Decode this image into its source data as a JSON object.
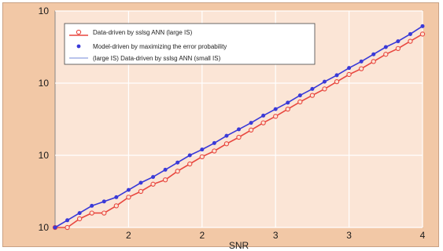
{
  "chart_data": {
    "type": "line",
    "title": "",
    "xlabel": "SNR",
    "ylabel": "",
    "x_tick_labels": [
      "2",
      "2",
      "3",
      "3",
      "4"
    ],
    "y_tick_labels": [
      "10",
      "10",
      "10",
      "10"
    ],
    "y_scale": "log",
    "grid": true,
    "legend_position": "top-left",
    "legend": [
      "Data-driven by sslsg ANN (large IS)",
      "Model-driven by maximizing the error probability",
      "(large IS) Data-driven by sslsg ANN (small IS)"
    ],
    "x": [
      1.0,
      1.1,
      1.2,
      1.3,
      1.4,
      1.5,
      1.6,
      1.7,
      1.8,
      1.9,
      2.0,
      2.1,
      2.2,
      2.3,
      2.4,
      2.5,
      2.6,
      2.7,
      2.8,
      2.9,
      3.0,
      3.1,
      3.2,
      3.3,
      3.4,
      3.5,
      3.6,
      3.7,
      3.8,
      3.9,
      4.0
    ],
    "series": [
      {
        "name": "Data-driven by sslsg ANN (large IS)",
        "color": "#e8473f",
        "marker": "open-circle",
        "values": [
          0.0,
          0.0,
          0.12,
          0.2,
          0.2,
          0.3,
          0.42,
          0.5,
          0.6,
          0.66,
          0.78,
          0.88,
          0.98,
          1.06,
          1.16,
          1.25,
          1.35,
          1.45,
          1.54,
          1.64,
          1.74,
          1.83,
          1.92,
          2.02,
          2.12,
          2.2,
          2.3,
          2.4,
          2.48,
          2.58,
          2.68
        ]
      },
      {
        "name": "Model-driven by maximizing the error probability",
        "color": "#3a3ad8",
        "marker": "filled-circle",
        "values": [
          0.0,
          0.1,
          0.2,
          0.3,
          0.36,
          0.42,
          0.52,
          0.62,
          0.7,
          0.8,
          0.9,
          1.0,
          1.08,
          1.17,
          1.27,
          1.36,
          1.45,
          1.55,
          1.64,
          1.73,
          1.83,
          1.92,
          2.02,
          2.11,
          2.21,
          2.3,
          2.4,
          2.5,
          2.58,
          2.68,
          2.79
        ]
      },
      {
        "name": "(large IS) Data-driven by sslsg ANN (small IS)",
        "color": "#8fa0e0",
        "marker": "none",
        "values": [
          0.0,
          0.1,
          0.2,
          0.3,
          0.36,
          0.42,
          0.52,
          0.62,
          0.7,
          0.8,
          0.9,
          1.0,
          1.08,
          1.17,
          1.27,
          1.36,
          1.45,
          1.55,
          1.64,
          1.73,
          1.83,
          1.92,
          2.02,
          2.11,
          2.21,
          2.3,
          2.4,
          2.5,
          2.58,
          2.68,
          2.79
        ]
      }
    ],
    "xlim": [
      1.0,
      4.0
    ],
    "ylim": [
      0,
      3
    ]
  }
}
